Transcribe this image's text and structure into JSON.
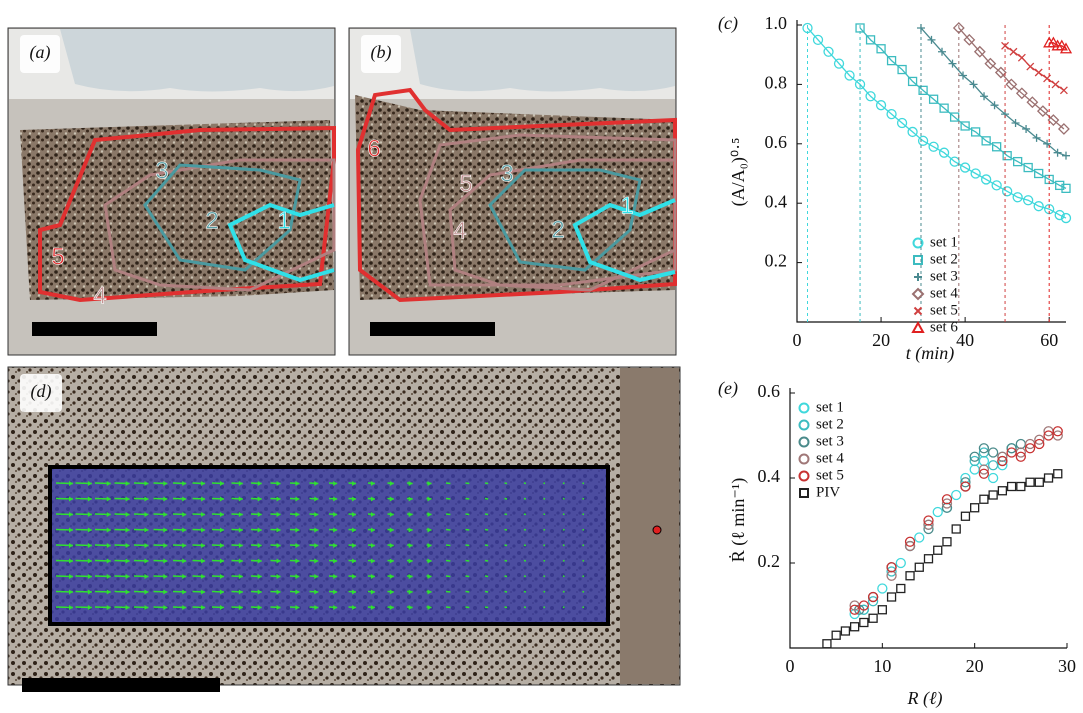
{
  "photos": [
    {
      "label": "(a)",
      "regions": [
        "5",
        "4",
        "3",
        "2",
        "1"
      ]
    },
    {
      "label": "(b)",
      "regions": [
        "6",
        "5",
        "4",
        "3",
        "2",
        "1"
      ]
    },
    {
      "label": "(d)"
    }
  ],
  "chart_data": [
    {
      "type": "scatter",
      "panel": "(c)",
      "x_label": "t (min)",
      "y_label": "(A/A₀)⁰·⁵",
      "xlim": [
        0,
        64
      ],
      "ylim": [
        0,
        1.0
      ],
      "xticks": [
        0,
        20,
        40,
        60
      ],
      "yticks": [
        0.2,
        0.4,
        0.6,
        0.8,
        {
          "value": 1.0,
          "label": "1.0"
        }
      ],
      "fit_lines": true,
      "start_lines": true,
      "series": [
        {
          "name": "set 1",
          "color": "#3fd8dc",
          "marker": "circle",
          "x": [
            2.5,
            5,
            7.5,
            10,
            12.5,
            15,
            17.5,
            20,
            22.5,
            25,
            27.5,
            30,
            32.5,
            35,
            37.5,
            40,
            42.5,
            45,
            47.5,
            50,
            52.5,
            55,
            57.5,
            60,
            62.5,
            64
          ],
          "values": [
            0.99,
            0.95,
            0.91,
            0.87,
            0.83,
            0.8,
            0.76,
            0.73,
            0.7,
            0.67,
            0.64,
            0.61,
            0.59,
            0.57,
            0.54,
            0.52,
            0.5,
            0.48,
            0.46,
            0.44,
            0.42,
            0.41,
            0.39,
            0.38,
            0.36,
            0.35
          ]
        },
        {
          "name": "set 2",
          "color": "#3cbcc0",
          "marker": "square",
          "x": [
            15,
            17.5,
            20,
            22.5,
            25,
            27.5,
            30,
            32.5,
            35,
            37.5,
            40,
            42.5,
            45,
            47.5,
            50,
            52.5,
            55,
            57.5,
            60,
            62.5,
            64
          ],
          "values": [
            0.99,
            0.95,
            0.92,
            0.88,
            0.85,
            0.81,
            0.78,
            0.75,
            0.72,
            0.69,
            0.66,
            0.64,
            0.61,
            0.59,
            0.56,
            0.54,
            0.52,
            0.5,
            0.48,
            0.46,
            0.45
          ]
        },
        {
          "name": "set 3",
          "color": "#4a8a90",
          "marker": "plus",
          "x": [
            29.5,
            32,
            34.5,
            37,
            39.5,
            42,
            44.5,
            47,
            49.5,
            52,
            54.5,
            57,
            59.5,
            62,
            64
          ],
          "values": [
            0.99,
            0.95,
            0.91,
            0.87,
            0.83,
            0.8,
            0.76,
            0.73,
            0.7,
            0.67,
            0.65,
            0.62,
            0.6,
            0.57,
            0.56
          ]
        },
        {
          "name": "set 4",
          "color": "#9a7070",
          "marker": "diamond",
          "x": [
            38.5,
            41,
            43.5,
            46,
            48.5,
            51,
            53.5,
            56,
            58.5,
            61,
            63.5
          ],
          "values": [
            0.99,
            0.95,
            0.91,
            0.87,
            0.84,
            0.8,
            0.77,
            0.74,
            0.71,
            0.68,
            0.65
          ]
        },
        {
          "name": "set 5",
          "color": "#d04040",
          "marker": "x",
          "x": [
            49.5,
            51.5,
            53.5,
            55.5,
            57.5,
            59.5,
            61.5,
            63.5
          ],
          "values": [
            0.93,
            0.91,
            0.89,
            0.86,
            0.84,
            0.82,
            0.8,
            0.78
          ]
        },
        {
          "name": "set 6",
          "color": "#e02020",
          "marker": "triangle",
          "x": [
            60,
            61,
            62,
            63,
            64
          ],
          "values": [
            0.94,
            0.94,
            0.93,
            0.93,
            0.92
          ]
        }
      ]
    },
    {
      "type": "scatter",
      "panel": "(e)",
      "x_label": "R (ℓ)",
      "y_label": "Ṙ (ℓ min⁻¹)",
      "xlim": [
        0,
        30
      ],
      "ylim": [
        0,
        0.6
      ],
      "xticks": [
        0,
        10,
        20,
        30
      ],
      "yticks": [
        0.2,
        0.4,
        0.6
      ],
      "series": [
        {
          "name": "set 1",
          "color": "#3fd8dc",
          "marker": "circle",
          "x": [
            7,
            8,
            10,
            12,
            14,
            16,
            18,
            19,
            20,
            21,
            22,
            23
          ],
          "values": [
            0.08,
            0.09,
            0.14,
            0.2,
            0.26,
            0.32,
            0.36,
            0.4,
            0.42,
            0.44,
            0.4,
            0.43
          ]
        },
        {
          "name": "set 2",
          "color": "#3cbcc0",
          "marker": "circle",
          "x": [
            8,
            9,
            11,
            13,
            15,
            17,
            19,
            20,
            21,
            22,
            23,
            24
          ],
          "values": [
            0.09,
            0.11,
            0.18,
            0.24,
            0.29,
            0.33,
            0.38,
            0.44,
            0.46,
            0.43,
            0.45,
            0.47
          ]
        },
        {
          "name": "set 3",
          "color": "#4a8a8a",
          "marker": "circle",
          "x": [
            7.5,
            9,
            11,
            13,
            15,
            17,
            19,
            20,
            21,
            22,
            23,
            24,
            25
          ],
          "values": [
            0.09,
            0.12,
            0.19,
            0.24,
            0.28,
            0.33,
            0.39,
            0.45,
            0.47,
            0.46,
            0.44,
            0.47,
            0.48
          ]
        },
        {
          "name": "set 4",
          "color": "#a07878",
          "marker": "circle",
          "x": [
            7,
            9,
            11,
            13,
            15,
            17,
            19,
            21,
            23,
            25,
            26,
            27,
            28,
            29
          ],
          "values": [
            0.1,
            0.12,
            0.17,
            0.24,
            0.29,
            0.34,
            0.38,
            0.42,
            0.45,
            0.46,
            0.48,
            0.49,
            0.51,
            0.5
          ]
        },
        {
          "name": "set 5",
          "color": "#c83232",
          "marker": "circle",
          "x": [
            7,
            8,
            9,
            11,
            13,
            15,
            17,
            19,
            21,
            23,
            24,
            25,
            26,
            27,
            28,
            29
          ],
          "values": [
            0.09,
            0.1,
            0.12,
            0.19,
            0.25,
            0.3,
            0.35,
            0.38,
            0.41,
            0.44,
            0.46,
            0.45,
            0.47,
            0.48,
            0.5,
            0.51
          ]
        },
        {
          "name": "PIV",
          "color": "#222222",
          "marker": "square",
          "x": [
            4,
            5,
            6,
            7,
            8,
            9,
            10,
            11,
            12,
            13,
            14,
            15,
            16,
            17,
            18,
            19,
            20,
            21,
            22,
            23,
            24,
            25,
            26,
            27,
            28,
            29
          ],
          "values": [
            0.01,
            0.03,
            0.04,
            0.05,
            0.06,
            0.07,
            0.09,
            0.12,
            0.14,
            0.17,
            0.19,
            0.21,
            0.23,
            0.25,
            0.28,
            0.31,
            0.33,
            0.35,
            0.36,
            0.37,
            0.38,
            0.38,
            0.39,
            0.39,
            0.4,
            0.41
          ]
        }
      ]
    }
  ]
}
